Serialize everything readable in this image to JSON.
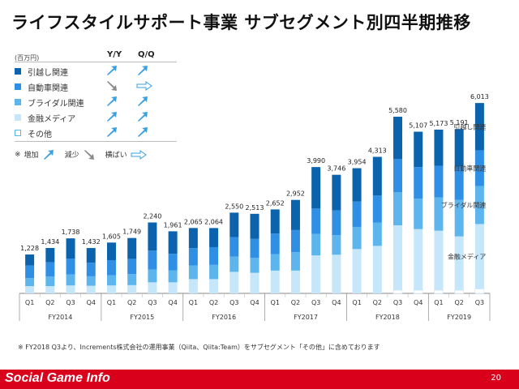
{
  "title": "ライフスタイルサポート事業 サブセグメント別四半期推移",
  "legend": {
    "unit": "(百万円)",
    "yy_header": "Y/Y",
    "qq_header": "Q/Q",
    "items": [
      {
        "label": "引越し関連",
        "color": "#0b63ad",
        "yy": "up",
        "qq": "up"
      },
      {
        "label": "自動車関連",
        "color": "#2f8fe5",
        "yy": "down",
        "qq": "flat"
      },
      {
        "label": "ブライダル関連",
        "color": "#5cb5ec",
        "yy": "up",
        "qq": "up"
      },
      {
        "label": "金融メディア",
        "color": "#c6e6fa",
        "yy": "up",
        "qq": "up"
      },
      {
        "label": "その他",
        "color": "#ffffff",
        "yy": "up",
        "qq": "up"
      }
    ],
    "note_symbol": "※",
    "note_up": "増加",
    "note_down": "減少",
    "note_flat": "横ばい"
  },
  "footnote": "※ FY2018 Q3より、Increments株式会社の運用事業（Qiita、Qiita:Team）をサブセグメント「その他」に含めております",
  "footer": {
    "brand": "Social Game Info",
    "page": "20"
  },
  "chart_data": {
    "type": "bar",
    "stacked": true,
    "categories": [
      "Q1",
      "Q2",
      "Q3",
      "Q4",
      "Q1",
      "Q2",
      "Q3",
      "Q4",
      "Q1",
      "Q2",
      "Q3",
      "Q4",
      "Q1",
      "Q2",
      "Q3",
      "Q4",
      "Q1",
      "Q2",
      "Q3",
      "Q4",
      "Q1",
      "Q2",
      "Q3"
    ],
    "fiscal_years": [
      {
        "label": "FY2014",
        "start": 0,
        "end": 3
      },
      {
        "label": "FY2015",
        "start": 4,
        "end": 7
      },
      {
        "label": "FY2016",
        "start": 8,
        "end": 11
      },
      {
        "label": "FY2017",
        "start": 12,
        "end": 15
      },
      {
        "label": "FY2018",
        "start": 16,
        "end": 19
      },
      {
        "label": "FY2019",
        "start": 20,
        "end": 22
      }
    ],
    "totals": [
      1228,
      1434,
      1738,
      1432,
      1605,
      1749,
      2240,
      1961,
      2065,
      2064,
      2550,
      2513,
      2652,
      2952,
      3990,
      3746,
      3954,
      4313,
      5580,
      5107,
      5173,
      5191,
      6013
    ],
    "series": [
      {
        "name": "その他",
        "color": "#ffffff",
        "values": [
          0,
          0,
          0,
          0,
          0,
          0,
          0,
          0,
          0,
          0,
          0,
          0,
          0,
          0,
          0,
          0,
          0,
          0,
          100,
          100,
          100,
          100,
          140
        ]
      },
      {
        "name": "金融メディア",
        "color": "#c6e6fa",
        "values": [
          230,
          230,
          250,
          240,
          250,
          260,
          350,
          350,
          450,
          450,
          680,
          650,
          720,
          720,
          1200,
          1220,
          1400,
          1500,
          2050,
          1930,
          1880,
          1700,
          2050
        ]
      },
      {
        "name": "ブライダル関連",
        "color": "#5cb5ec",
        "values": [
          250,
          300,
          350,
          300,
          320,
          350,
          400,
          380,
          430,
          450,
          480,
          470,
          520,
          580,
          680,
          620,
          700,
          740,
          1050,
          960,
          1050,
          1150,
          1200
        ]
      },
      {
        "name": "自動車関連",
        "color": "#2f8fe5",
        "values": [
          400,
          450,
          500,
          430,
          480,
          480,
          600,
          520,
          550,
          560,
          620,
          600,
          650,
          700,
          800,
          780,
          800,
          850,
          1050,
          1000,
          1000,
          1050,
          1130
        ]
      },
      {
        "name": "引越し関連",
        "color": "#0b63ad",
        "values": [
          348,
          454,
          638,
          462,
          555,
          659,
          890,
          711,
          635,
          604,
          770,
          793,
          762,
          952,
          1310,
          1126,
          1054,
          1223,
          1330,
          1117,
          1143,
          1191,
          1493
        ]
      }
    ],
    "series_labels": {
      "index": 22,
      "items": [
        "引越し関連",
        "自動車関連",
        "ブライダル関連",
        "金融メディア"
      ]
    },
    "ylim": [
      0,
      6400
    ],
    "xlabel": "",
    "ylabel": ""
  }
}
